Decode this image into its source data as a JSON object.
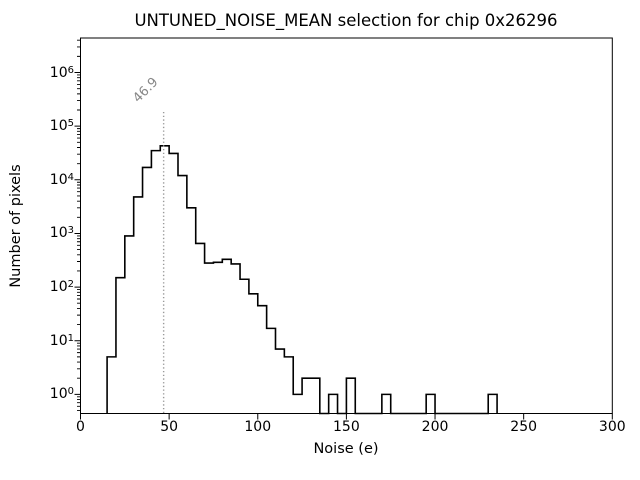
{
  "figure": {
    "background": "#ffffff"
  },
  "chart_data": {
    "type": "histogram",
    "element": "step-outline",
    "title": "UNTUNED_NOISE_MEAN selection for chip 0x26296",
    "xlabel": "Noise (e)",
    "ylabel": "Number of pixels",
    "xlim": [
      0,
      300
    ],
    "ylim": [
      0.44,
      4400000
    ],
    "yscale": "log",
    "grid": false,
    "legend": null,
    "line_color": "#000000",
    "bin_width": 5,
    "bin_edges": [
      15,
      20,
      25,
      30,
      35,
      40,
      45,
      50,
      55,
      60,
      65,
      70,
      75,
      80,
      85,
      90,
      95,
      100,
      105,
      110,
      115,
      120,
      125,
      130,
      135,
      140,
      145,
      150,
      155,
      160,
      165,
      170,
      175,
      180,
      185,
      190,
      195,
      200,
      205,
      210,
      215,
      220,
      225,
      230,
      235
    ],
    "counts": [
      5,
      150,
      900,
      4800,
      17000,
      35000,
      43000,
      31000,
      12000,
      3000,
      650,
      280,
      290,
      330,
      270,
      140,
      75,
      45,
      17,
      7,
      5,
      1,
      2,
      2,
      0,
      1,
      0,
      2,
      0,
      0,
      0,
      1,
      0,
      0,
      0,
      0,
      1,
      0,
      0,
      0,
      0,
      0,
      0,
      1
    ],
    "x_ticks": [
      0,
      50,
      100,
      150,
      200,
      250,
      300
    ],
    "y_tick_exponents": [
      0,
      1,
      2,
      3,
      4,
      5,
      6
    ],
    "vline": {
      "x": 46.9,
      "label": "46.9",
      "color": "#999999",
      "style": "dotted"
    }
  }
}
